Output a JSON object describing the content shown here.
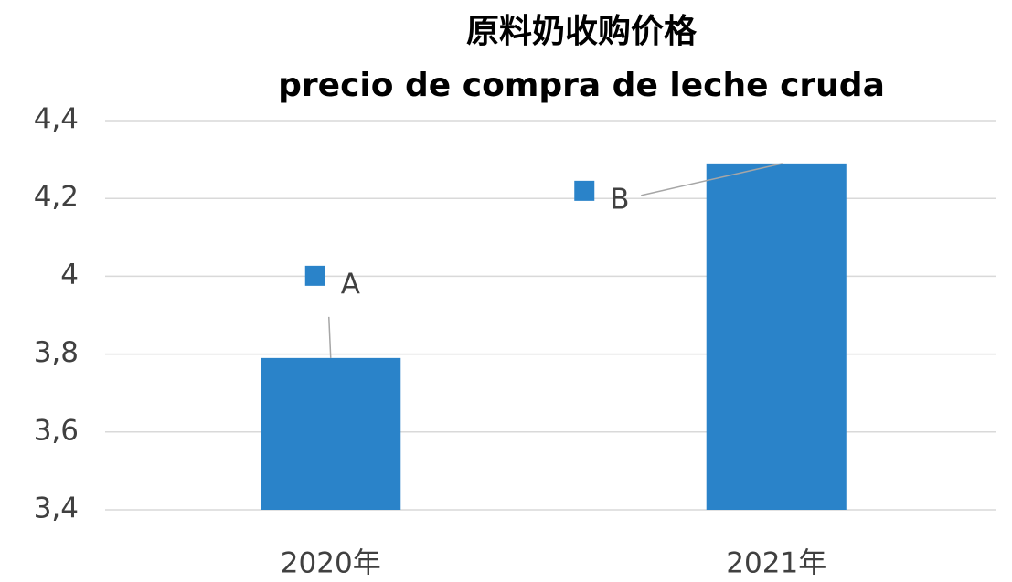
{
  "chart_data": {
    "type": "bar",
    "title": "原料奶收购价格",
    "subtitle": "precio de compra de leche cruda",
    "categories": [
      "2020年",
      "2021年"
    ],
    "values": [
      3.79,
      4.29
    ],
    "labels": [
      "A",
      "B"
    ],
    "color": "#2a83c9",
    "ylim": [
      3.4,
      4.4
    ],
    "yticks": [
      {
        "value": 3.4,
        "label": "3,4"
      },
      {
        "value": 3.6,
        "label": "3,6"
      },
      {
        "value": 3.8,
        "label": "3,8"
      },
      4,
      {
        "value": 4.2,
        "label": "4,2"
      },
      {
        "value": 4.4,
        "label": "4,4"
      }
    ],
    "grid": true
  }
}
